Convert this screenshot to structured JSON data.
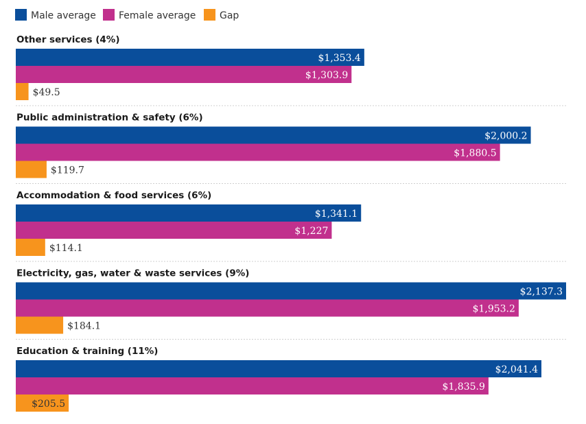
{
  "chart_data": {
    "type": "bar",
    "orientation": "horizontal",
    "legend_position": "top-left",
    "grid": false,
    "xlim": [
      0,
      2137.3
    ],
    "series": [
      {
        "name": "Male average",
        "color": "#0a4e9b",
        "label_color": "#ffffff",
        "key": "male"
      },
      {
        "name": "Female average",
        "color": "#c1308d",
        "label_color": "#ffffff",
        "key": "female"
      },
      {
        "name": "Gap",
        "color": "#f7941d",
        "label_color": "#333333",
        "key": "gap"
      }
    ],
    "groups": [
      {
        "title": "Other services (4%)",
        "values": [
          1353.4,
          1303.9,
          49.5
        ],
        "labels": [
          "$1,353.4",
          "$1,303.9",
          "$49.5"
        ]
      },
      {
        "title": "Public administration & safety (6%)",
        "values": [
          2000.2,
          1880.5,
          119.7
        ],
        "labels": [
          "$2,000.2",
          "$1,880.5",
          "$119.7"
        ]
      },
      {
        "title": "Accommodation & food services (6%)",
        "values": [
          1341.1,
          1227,
          114.1
        ],
        "labels": [
          "$1,341.1",
          "$1,227",
          "$114.1"
        ]
      },
      {
        "title": "Electricity, gas, water & waste services (9%)",
        "values": [
          2137.3,
          1953.2,
          184.1
        ],
        "labels": [
          "$2,137.3",
          "$1,953.2",
          "$184.1"
        ]
      },
      {
        "title": "Education & training (11%)",
        "values": [
          2041.4,
          1835.9,
          205.5
        ],
        "labels": [
          "$2,041.4",
          "$1,835.9",
          "$205.5"
        ]
      }
    ]
  }
}
